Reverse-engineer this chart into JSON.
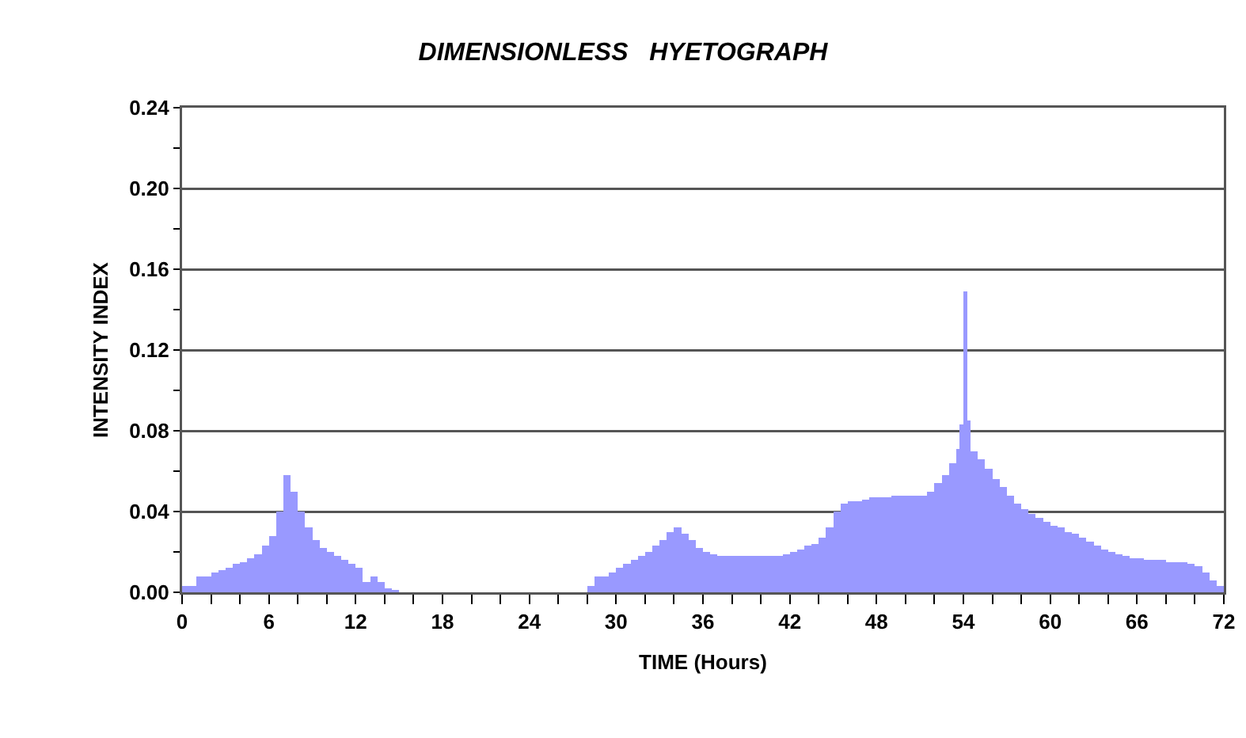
{
  "chart_data": {
    "type": "histogram",
    "title": "DIMENSIONLESS   HYETOGRAPH",
    "xlabel": "TIME (Hours)",
    "ylabel": "INTENSITY INDEX",
    "color": "#9999ff",
    "bins": [
      0,
      0.5,
      1,
      1.5,
      2,
      2.5,
      3,
      3.5,
      4,
      4.5,
      5,
      5.5,
      6,
      6.5,
      7,
      7.5,
      8,
      8.5,
      9,
      9.5,
      10,
      10.5,
      11,
      11.5,
      12,
      12.5,
      13,
      13.5,
      14,
      14.5,
      15,
      28,
      28.5,
      29,
      29.5,
      30,
      30.5,
      31,
      31.5,
      32,
      32.5,
      33,
      33.5,
      34,
      34.5,
      35,
      35.5,
      36,
      36.5,
      37,
      37.5,
      38,
      38.5,
      39,
      39.5,
      40,
      40.5,
      41,
      41.5,
      42,
      42.5,
      43,
      43.5,
      44,
      44.5,
      45,
      45.5,
      46,
      46.5,
      47,
      47.5,
      48,
      48.5,
      49,
      49.5,
      50,
      50.5,
      51,
      51.5,
      52,
      52.5,
      53,
      53.5,
      53.75,
      54,
      54.25,
      54.5,
      55,
      55.5,
      56,
      56.5,
      57,
      57.5,
      58,
      58.5,
      59,
      59.5,
      60,
      60.5,
      61,
      61.5,
      62,
      62.5,
      63,
      63.5,
      64,
      64.5,
      65,
      65.5,
      66,
      66.5,
      67,
      67.5,
      68,
      68.5,
      69,
      69.5,
      70,
      70.5,
      71,
      71.5,
      72
    ],
    "values": [
      0.003,
      0.003,
      0.008,
      0.008,
      0.01,
      0.011,
      0.012,
      0.014,
      0.015,
      0.017,
      0.019,
      0.023,
      0.028,
      0.04,
      0.058,
      0.05,
      0.04,
      0.032,
      0.026,
      0.022,
      0.02,
      0.018,
      0.016,
      0.014,
      0.012,
      0.005,
      0.008,
      0.005,
      0.002,
      0.001,
      0,
      0.003,
      0.008,
      0.008,
      0.01,
      0.012,
      0.014,
      0.016,
      0.018,
      0.02,
      0.023,
      0.026,
      0.03,
      0.032,
      0.029,
      0.026,
      0.022,
      0.02,
      0.019,
      0.018,
      0.018,
      0.018,
      0.018,
      0.018,
      0.018,
      0.018,
      0.018,
      0.018,
      0.019,
      0.02,
      0.021,
      0.023,
      0.024,
      0.027,
      0.032,
      0.04,
      0.044,
      0.045,
      0.045,
      0.046,
      0.047,
      0.047,
      0.047,
      0.048,
      0.048,
      0.048,
      0.048,
      0.048,
      0.05,
      0.054,
      0.058,
      0.064,
      0.071,
      0.083,
      0.149,
      0.085,
      0.07,
      0.066,
      0.061,
      0.056,
      0.052,
      0.048,
      0.044,
      0.041,
      0.039,
      0.037,
      0.035,
      0.033,
      0.032,
      0.03,
      0.029,
      0.027,
      0.025,
      0.023,
      0.021,
      0.02,
      0.019,
      0.018,
      0.017,
      0.017,
      0.016,
      0.016,
      0.016,
      0.015,
      0.015,
      0.015,
      0.014,
      0.013,
      0.01,
      0.006,
      0.003
    ],
    "xlim": [
      0,
      72
    ],
    "xticks": [
      0,
      {
        "value": 2,
        "label": null
      },
      {
        "value": 4,
        "label": null
      },
      6,
      {
        "value": 8,
        "label": null
      },
      {
        "value": 10,
        "label": null
      },
      12,
      {
        "value": 14,
        "label": null
      },
      {
        "value": 16,
        "label": null
      },
      18,
      {
        "value": 20,
        "label": null
      },
      {
        "value": 22,
        "label": null
      },
      24,
      {
        "value": 26,
        "label": null
      },
      {
        "value": 28,
        "label": null
      },
      30,
      {
        "value": 32,
        "label": null
      },
      {
        "value": 34,
        "label": null
      },
      36,
      {
        "value": 38,
        "label": null
      },
      {
        "value": 40,
        "label": null
      },
      42,
      {
        "value": 44,
        "label": null
      },
      {
        "value": 46,
        "label": null
      },
      48,
      {
        "value": 50,
        "label": null
      },
      {
        "value": 52,
        "label": null
      },
      54,
      {
        "value": 56,
        "label": null
      },
      {
        "value": 58,
        "label": null
      },
      60,
      {
        "value": 62,
        "label": null
      },
      {
        "value": 64,
        "label": null
      },
      66,
      {
        "value": 68,
        "label": null
      },
      {
        "value": 70,
        "label": null
      },
      72
    ],
    "ylim": [
      0,
      0.24
    ],
    "yticks": [
      {
        "value": 0,
        "label": "0.00"
      },
      {
        "value": 0.02,
        "label": null
      },
      {
        "value": 0.04,
        "label": "0.04"
      },
      {
        "value": 0.06,
        "label": null
      },
      {
        "value": 0.08,
        "label": "0.08"
      },
      {
        "value": 0.1,
        "label": null
      },
      {
        "value": 0.12,
        "label": "0.12"
      },
      {
        "value": 0.14,
        "label": null
      },
      {
        "value": 0.16,
        "label": "0.16"
      },
      {
        "value": 0.18,
        "label": null
      },
      {
        "value": 0.2,
        "label": "0.20"
      },
      {
        "value": 0.22,
        "label": null
      },
      {
        "value": 0.24,
        "label": "0.24"
      }
    ],
    "grid": "y"
  }
}
